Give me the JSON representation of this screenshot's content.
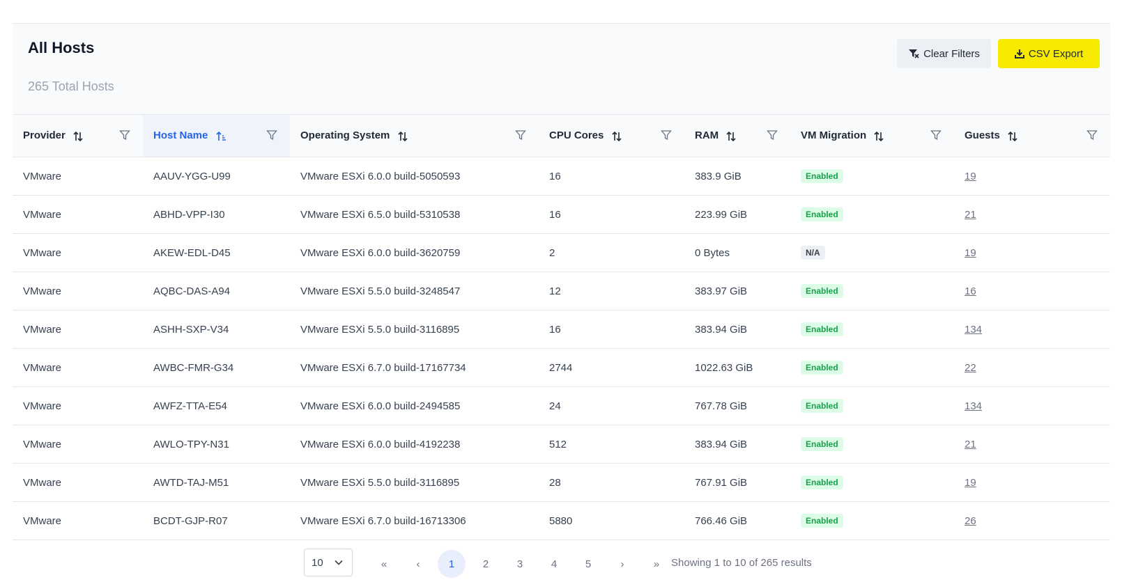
{
  "header": {
    "title": "All Hosts",
    "subtitle": "265 Total Hosts",
    "clear_filters_label": "Clear Filters",
    "csv_export_label": "CSV Export"
  },
  "table": {
    "columns": [
      "Provider",
      "Host Name",
      "Operating System",
      "CPU Cores",
      "RAM",
      "VM Migration",
      "Guests"
    ],
    "sorted_column": "Host Name",
    "rows": [
      {
        "provider": "VMware",
        "host": "AAUV-YGG-U99",
        "os": "VMware ESXi 6.0.0 build-5050593",
        "cpu": "16",
        "ram": "383.9 GiB",
        "migration": "Enabled",
        "guests": "19"
      },
      {
        "provider": "VMware",
        "host": "ABHD-VPP-I30",
        "os": "VMware ESXi 6.5.0 build-5310538",
        "cpu": "16",
        "ram": "223.99 GiB",
        "migration": "Enabled",
        "guests": "21"
      },
      {
        "provider": "VMware",
        "host": "AKEW-EDL-D45",
        "os": "VMware ESXi 6.0.0 build-3620759",
        "cpu": "2",
        "ram": "0 Bytes",
        "migration": "N/A",
        "guests": "19"
      },
      {
        "provider": "VMware",
        "host": "AQBC-DAS-A94",
        "os": "VMware ESXi 5.5.0 build-3248547",
        "cpu": "12",
        "ram": "383.97 GiB",
        "migration": "Enabled",
        "guests": "16"
      },
      {
        "provider": "VMware",
        "host": "ASHH-SXP-V34",
        "os": "VMware ESXi 5.5.0 build-3116895",
        "cpu": "16",
        "ram": "383.94 GiB",
        "migration": "Enabled",
        "guests": "134"
      },
      {
        "provider": "VMware",
        "host": "AWBC-FMR-G34",
        "os": "VMware ESXi 6.7.0 build-17167734",
        "cpu": "2744",
        "ram": "1022.63 GiB",
        "migration": "Enabled",
        "guests": "22"
      },
      {
        "provider": "VMware",
        "host": "AWFZ-TTA-E54",
        "os": "VMware ESXi 6.0.0 build-2494585",
        "cpu": "24",
        "ram": "767.78 GiB",
        "migration": "Enabled",
        "guests": "134"
      },
      {
        "provider": "VMware",
        "host": "AWLO-TPY-N31",
        "os": "VMware ESXi 6.0.0 build-4192238",
        "cpu": "512",
        "ram": "383.94 GiB",
        "migration": "Enabled",
        "guests": "21"
      },
      {
        "provider": "VMware",
        "host": "AWTD-TAJ-M51",
        "os": "VMware ESXi 5.5.0 build-3116895",
        "cpu": "28",
        "ram": "767.91 GiB",
        "migration": "Enabled",
        "guests": "19"
      },
      {
        "provider": "VMware",
        "host": "BCDT-GJP-R07",
        "os": "VMware ESXi 6.7.0 build-16713306",
        "cpu": "5880",
        "ram": "766.46 GiB",
        "migration": "Enabled",
        "guests": "26"
      }
    ]
  },
  "pagination": {
    "page_size": "10",
    "pages": [
      "1",
      "2",
      "3",
      "4",
      "5"
    ],
    "current_page": "1",
    "info": "Showing 1 to 10 of 265 results",
    "first_symbol": "«",
    "prev_symbol": "‹",
    "next_symbol": "›",
    "last_symbol": "»"
  },
  "colors": {
    "accent": "#2563eb",
    "csv_button": "#f7ea00",
    "enabled_badge_bg": "#dcfce7",
    "enabled_badge_text": "#16a34a"
  },
  "icons": {
    "clear_filters": "filter-clear-icon",
    "csv_export": "download-icon",
    "sort": "sort-icon",
    "sort_active": "sort-ascending-icon",
    "filter": "filter-icon",
    "select": "chevron-down-icon"
  }
}
